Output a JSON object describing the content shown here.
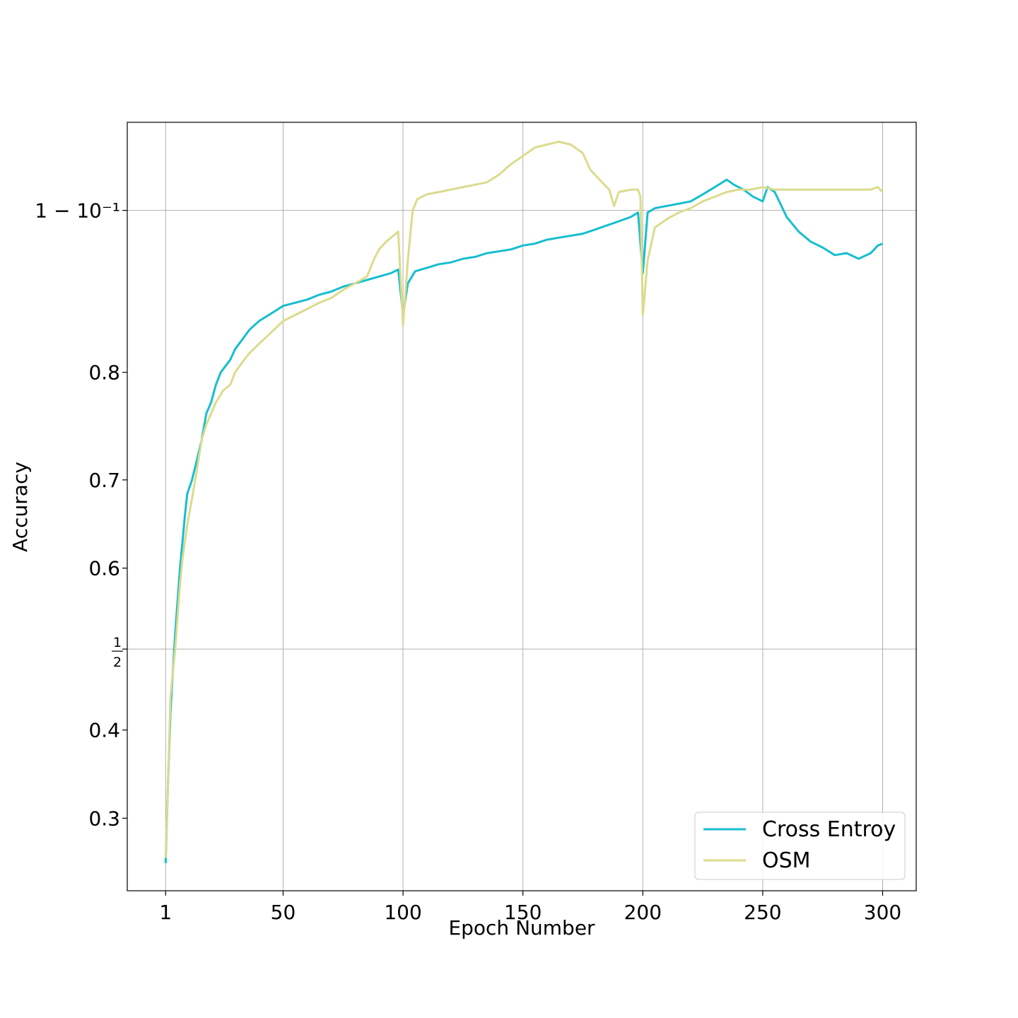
{
  "chart_data": {
    "type": "line",
    "xlabel": "Epoch Number",
    "ylabel": "Accuracy",
    "xlim": [
      -15,
      314
    ],
    "ylim": [
      0.2296,
      0.9333
    ],
    "y_scale": "logit",
    "grid": true,
    "legend_position": "lower-right",
    "x_ticks": [
      {
        "value": 1,
        "label": "1"
      },
      {
        "value": 50,
        "label": "50"
      },
      {
        "value": 100,
        "label": "100"
      },
      {
        "value": 150,
        "label": "150"
      },
      {
        "value": 200,
        "label": "200"
      },
      {
        "value": 250,
        "label": "250"
      },
      {
        "value": 300,
        "label": "300"
      }
    ],
    "y_ticks": [
      {
        "value": 0.3,
        "label": "0.3",
        "grid": false
      },
      {
        "value": 0.4,
        "label": "0.4",
        "grid": false
      },
      {
        "value": 0.5,
        "label": "1/2",
        "grid": true
      },
      {
        "value": 0.6,
        "label": "0.6",
        "grid": false
      },
      {
        "value": 0.7,
        "label": "0.7",
        "grid": false
      },
      {
        "value": 0.8,
        "label": "0.8",
        "grid": false
      },
      {
        "value": 0.9,
        "label": "1 − 10⁻¹",
        "grid": true
      }
    ],
    "series": [
      {
        "name": "Cross Entroy",
        "color": "#17becf",
        "points": [
          [
            1,
            0.255
          ],
          [
            2,
            0.34
          ],
          [
            3,
            0.42
          ],
          [
            4,
            0.47
          ],
          [
            5,
            0.52
          ],
          [
            6,
            0.56
          ],
          [
            7,
            0.6
          ],
          [
            8,
            0.63
          ],
          [
            9,
            0.66
          ],
          [
            10,
            0.685
          ],
          [
            12,
            0.7
          ],
          [
            14,
            0.72
          ],
          [
            16,
            0.74
          ],
          [
            18,
            0.765
          ],
          [
            20,
            0.775
          ],
          [
            22,
            0.79
          ],
          [
            24,
            0.8
          ],
          [
            26,
            0.805
          ],
          [
            28,
            0.81
          ],
          [
            30,
            0.818
          ],
          [
            33,
            0.825
          ],
          [
            36,
            0.832
          ],
          [
            40,
            0.838
          ],
          [
            45,
            0.843
          ],
          [
            50,
            0.848
          ],
          [
            55,
            0.85
          ],
          [
            60,
            0.852
          ],
          [
            65,
            0.855
          ],
          [
            70,
            0.857
          ],
          [
            75,
            0.86
          ],
          [
            80,
            0.862
          ],
          [
            85,
            0.864
          ],
          [
            90,
            0.866
          ],
          [
            95,
            0.868
          ],
          [
            98,
            0.87
          ],
          [
            100,
            0.842
          ],
          [
            102,
            0.862
          ],
          [
            105,
            0.869
          ],
          [
            110,
            0.871
          ],
          [
            115,
            0.873
          ],
          [
            120,
            0.874
          ],
          [
            125,
            0.876
          ],
          [
            130,
            0.877
          ],
          [
            135,
            0.879
          ],
          [
            140,
            0.88
          ],
          [
            145,
            0.881
          ],
          [
            150,
            0.883
          ],
          [
            155,
            0.884
          ],
          [
            160,
            0.886
          ],
          [
            165,
            0.887
          ],
          [
            170,
            0.888
          ],
          [
            175,
            0.889
          ],
          [
            180,
            0.891
          ],
          [
            185,
            0.893
          ],
          [
            190,
            0.895
          ],
          [
            195,
            0.897
          ],
          [
            198,
            0.899
          ],
          [
            200,
            0.868
          ],
          [
            202,
            0.899
          ],
          [
            205,
            0.901
          ],
          [
            210,
            0.902
          ],
          [
            215,
            0.903
          ],
          [
            220,
            0.904
          ],
          [
            225,
            0.907
          ],
          [
            230,
            0.91
          ],
          [
            235,
            0.913
          ],
          [
            238,
            0.911
          ],
          [
            242,
            0.909
          ],
          [
            246,
            0.906
          ],
          [
            250,
            0.904
          ],
          [
            252,
            0.91
          ],
          [
            255,
            0.908
          ],
          [
            260,
            0.897
          ],
          [
            265,
            0.89
          ],
          [
            270,
            0.885
          ],
          [
            275,
            0.882
          ],
          [
            280,
            0.878
          ],
          [
            285,
            0.879
          ],
          [
            290,
            0.876
          ],
          [
            295,
            0.879
          ],
          [
            298,
            0.883
          ],
          [
            300,
            0.884
          ]
        ]
      },
      {
        "name": "OSM",
        "color": "#dbdb8d",
        "points": [
          [
            1,
            0.26
          ],
          [
            2,
            0.34
          ],
          [
            3,
            0.44
          ],
          [
            4,
            0.47
          ],
          [
            5,
            0.5
          ],
          [
            6,
            0.54
          ],
          [
            7,
            0.58
          ],
          [
            8,
            0.61
          ],
          [
            10,
            0.65
          ],
          [
            12,
            0.68
          ],
          [
            14,
            0.71
          ],
          [
            16,
            0.74
          ],
          [
            18,
            0.755
          ],
          [
            20,
            0.765
          ],
          [
            22,
            0.775
          ],
          [
            25,
            0.785
          ],
          [
            28,
            0.79
          ],
          [
            30,
            0.8
          ],
          [
            33,
            0.808
          ],
          [
            36,
            0.815
          ],
          [
            40,
            0.822
          ],
          [
            45,
            0.83
          ],
          [
            50,
            0.838
          ],
          [
            55,
            0.842
          ],
          [
            60,
            0.846
          ],
          [
            65,
            0.85
          ],
          [
            70,
            0.853
          ],
          [
            75,
            0.858
          ],
          [
            80,
            0.862
          ],
          [
            85,
            0.866
          ],
          [
            88,
            0.876
          ],
          [
            90,
            0.881
          ],
          [
            93,
            0.885
          ],
          [
            96,
            0.888
          ],
          [
            98,
            0.89
          ],
          [
            100,
            0.835
          ],
          [
            102,
            0.875
          ],
          [
            104,
            0.9
          ],
          [
            106,
            0.905
          ],
          [
            110,
            0.907
          ],
          [
            115,
            0.908
          ],
          [
            120,
            0.909
          ],
          [
            125,
            0.91
          ],
          [
            130,
            0.911
          ],
          [
            135,
            0.912
          ],
          [
            140,
            0.915
          ],
          [
            145,
            0.919
          ],
          [
            150,
            0.922
          ],
          [
            155,
            0.925
          ],
          [
            160,
            0.926
          ],
          [
            165,
            0.927
          ],
          [
            170,
            0.926
          ],
          [
            175,
            0.923
          ],
          [
            178,
            0.917
          ],
          [
            180,
            0.915
          ],
          [
            183,
            0.912
          ],
          [
            186,
            0.909
          ],
          [
            188,
            0.902
          ],
          [
            190,
            0.908
          ],
          [
            195,
            0.909
          ],
          [
            198,
            0.909
          ],
          [
            199,
            0.906
          ],
          [
            200,
            0.842
          ],
          [
            202,
            0.875
          ],
          [
            205,
            0.892
          ],
          [
            210,
            0.896
          ],
          [
            215,
            0.899
          ],
          [
            220,
            0.901
          ],
          [
            225,
            0.904
          ],
          [
            230,
            0.906
          ],
          [
            235,
            0.908
          ],
          [
            240,
            0.909
          ],
          [
            245,
            0.909
          ],
          [
            250,
            0.91
          ],
          [
            255,
            0.909
          ],
          [
            260,
            0.909
          ],
          [
            265,
            0.909
          ],
          [
            270,
            0.909
          ],
          [
            275,
            0.909
          ],
          [
            280,
            0.909
          ],
          [
            285,
            0.909
          ],
          [
            290,
            0.909
          ],
          [
            295,
            0.909
          ],
          [
            298,
            0.91
          ],
          [
            300,
            0.908
          ]
        ]
      }
    ]
  }
}
